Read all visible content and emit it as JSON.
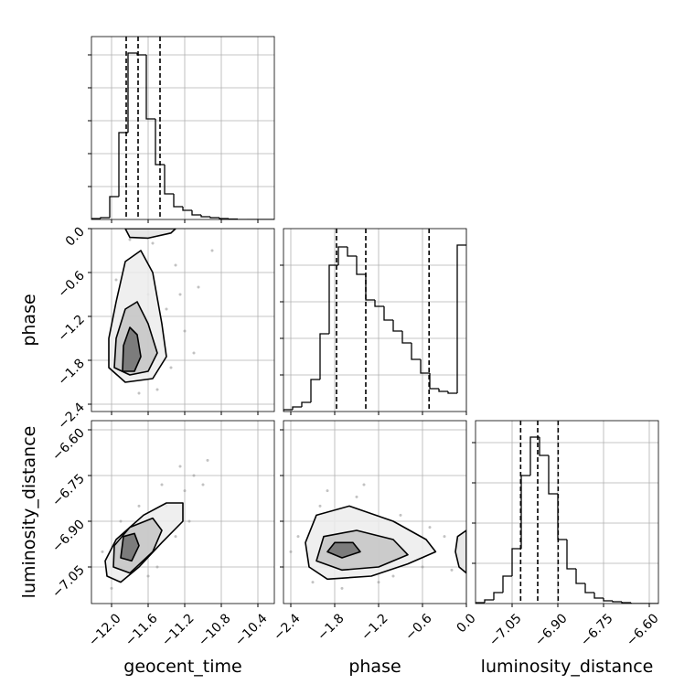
{
  "chart_data": {
    "type": "corner",
    "grid": true,
    "hist_color": "#000000",
    "scatter_color": "#9a9a9a",
    "contour_color": "#000000",
    "parameters": [
      {
        "name": "geocent_time",
        "lim": [
          -12.22,
          -10.22
        ],
        "ticks": [
          {
            "value": -12.0,
            "label": "−12.0"
          },
          {
            "value": -11.6,
            "label": "−11.6"
          },
          {
            "value": -11.2,
            "label": "−11.2"
          },
          {
            "value": -10.8,
            "label": "−10.8"
          },
          {
            "value": -10.4,
            "label": "−10.4"
          }
        ]
      },
      {
        "name": "phase",
        "lim": [
          -2.5,
          0.0
        ],
        "ticks": [
          {
            "value": -2.4,
            "label": "−2.4"
          },
          {
            "value": -1.8,
            "label": "−1.8"
          },
          {
            "value": -1.2,
            "label": "−1.2"
          },
          {
            "value": -0.6,
            "label": "−0.6"
          },
          {
            "value": 0,
            "label": "0.0"
          }
        ]
      },
      {
        "name": "luminosity_distance",
        "lim": [
          -7.17,
          -6.57
        ],
        "ticks": [
          {
            "value": -7.05,
            "label": "−7.05"
          },
          {
            "value": -6.9,
            "label": "−6.90"
          },
          {
            "value": -6.75,
            "label": "−6.75"
          },
          {
            "value": -6.6,
            "label": "−6.60"
          }
        ]
      }
    ],
    "histograms": [
      {
        "bins": [
          -12.22,
          -12.12,
          -12.02,
          -11.92,
          -11.82,
          -11.72,
          -11.62,
          -11.52,
          -11.42,
          -11.32,
          -11.22,
          -11.12,
          -11.02,
          -10.92,
          -10.82,
          -10.72,
          -10.62,
          -10.52,
          -10.42,
          -10.32,
          -10.22
        ],
        "values": [
          1,
          2,
          25,
          95,
          182,
          180,
          110,
          60,
          28,
          14,
          10,
          5,
          3,
          2,
          1,
          0.5,
          0,
          0,
          0,
          0
        ],
        "ylim": [
          0,
          200
        ],
        "yticks": [
          36,
          72,
          108,
          144,
          180
        ],
        "quantiles": [
          -11.84,
          -11.71,
          -11.47
        ]
      },
      {
        "bins": [
          -2.5,
          -2.375,
          -2.25,
          -2.125,
          -2.0,
          -1.875,
          -1.75,
          -1.625,
          -1.5,
          -1.375,
          -1.25,
          -1.125,
          -1.0,
          -0.875,
          -0.75,
          -0.625,
          -0.5,
          -0.375,
          -0.25,
          -0.125,
          0.0
        ],
        "values": [
          2,
          5,
          10,
          35,
          85,
          160,
          180,
          170,
          150,
          122,
          115,
          100,
          88,
          75,
          57,
          42,
          25,
          22,
          20,
          182
        ],
        "ylim": [
          0,
          200
        ],
        "yticks": [
          40,
          80,
          120,
          160
        ],
        "quantiles": [
          -1.775,
          -1.375,
          -0.51
        ]
      },
      {
        "bins": [
          -7.17,
          -7.14,
          -7.11,
          -7.08,
          -7.05,
          -7.02,
          -6.99,
          -6.96,
          -6.93,
          -6.9,
          -6.87,
          -6.84,
          -6.81,
          -6.78,
          -6.75,
          -6.72,
          -6.69,
          -6.66,
          -6.63,
          -6.6,
          -6.57
        ],
        "values": [
          1,
          4,
          12,
          30,
          60,
          140,
          182,
          162,
          120,
          70,
          38,
          22,
          12,
          6,
          3,
          2,
          1,
          0,
          0,
          0
        ],
        "ylim": [
          0,
          200
        ],
        "yticks": [
          44,
          88,
          132,
          176
        ],
        "quantiles": [
          -7.022,
          -6.966,
          -6.899
        ]
      }
    ],
    "pairs": [
      {
        "points": {
          "x": [
            -11.9,
            -11.6,
            -11.4,
            -11.3,
            -11.5,
            -11.2,
            -11.05,
            -11.7,
            -11.95,
            -11.35,
            -10.9,
            -11.1,
            -11.55,
            -11.8,
            -11.25
          ],
          "y": [
            -1.5,
            -0.9,
            -1.1,
            -0.5,
            -2.2,
            -1.4,
            -0.8,
            -2.25,
            -0.7,
            -1.9,
            -0.3,
            -1.7,
            -0.2,
            -0.15,
            -0.9
          ]
        },
        "contours": [
          {
            "x": [
              -12.03,
              -11.85,
              -11.55,
              -11.4,
              -11.45,
              -11.55,
              -11.68,
              -11.85,
              -11.95,
              -12.03
            ],
            "y": [
              -1.9,
              -2.1,
              -2.05,
              -1.75,
              -1.3,
              -0.6,
              -0.3,
              -0.45,
              -1.0,
              -1.5
            ]
          },
          {
            "x": [
              -11.97,
              -11.8,
              -11.6,
              -11.5,
              -11.6,
              -11.72,
              -11.85,
              -11.95
            ],
            "y": [
              -1.9,
              -2.0,
              -1.95,
              -1.7,
              -1.3,
              -1.0,
              -1.1,
              -1.5
            ]
          },
          {
            "x": [
              -11.88,
              -11.75,
              -11.68,
              -11.72,
              -11.8,
              -11.87
            ],
            "y": [
              -1.95,
              -1.95,
              -1.75,
              -1.45,
              -1.35,
              -1.6
            ]
          },
          {
            "x": [
              -11.85,
              -11.8,
              -11.6,
              -11.35,
              -11.3
            ],
            "y": [
              0,
              -0.12,
              -0.13,
              -0.06,
              0
            ]
          }
        ]
      },
      {
        "points": {
          "x": [
            -12.0,
            -11.9,
            -11.6,
            -11.4,
            -11.2,
            -11.1,
            -11.3,
            -11.5,
            -11.7,
            -11.0,
            -11.25,
            -12.1,
            -11.45,
            -11.15,
            -10.95
          ],
          "y": [
            -7.12,
            -6.9,
            -7.08,
            -6.85,
            -6.8,
            -6.75,
            -6.95,
            -7.05,
            -6.85,
            -6.78,
            -6.72,
            -7.0,
            -6.78,
            -6.9,
            -6.7
          ]
        },
        "contours": [
          {
            "x": [
              -12.05,
              -11.9,
              -11.7,
              -11.45,
              -11.22,
              -11.22,
              -11.4,
              -11.65,
              -11.95,
              -12.07
            ],
            "y": [
              -7.08,
              -7.1,
              -7.05,
              -6.97,
              -6.9,
              -6.84,
              -6.84,
              -6.88,
              -6.96,
              -7.03
            ]
          },
          {
            "x": [
              -11.98,
              -11.8,
              -11.55,
              -11.45,
              -11.55,
              -11.8,
              -11.97
            ],
            "y": [
              -7.05,
              -7.07,
              -7.0,
              -6.93,
              -6.89,
              -6.92,
              -6.98
            ]
          },
          {
            "x": [
              -11.9,
              -11.78,
              -11.7,
              -11.75,
              -11.87
            ],
            "y": [
              -7.02,
              -7.03,
              -6.98,
              -6.94,
              -6.95
            ]
          }
        ]
      },
      {
        "points": {
          "x": [
            -2.3,
            -2.1,
            -1.9,
            -1.5,
            -1.2,
            -0.9,
            -0.6,
            -0.3,
            -1.7,
            -2.0,
            -1.0,
            -0.5,
            -1.4,
            -2.4,
            -0.2
          ],
          "y": [
            -6.95,
            -7.1,
            -6.8,
            -6.82,
            -7.1,
            -6.88,
            -7.05,
            -6.95,
            -7.12,
            -6.85,
            -7.08,
            -6.92,
            -6.78,
            -7.0,
            -7.06
          ]
        },
        "contours": [
          {
            "x": [
              -2.15,
              -1.9,
              -1.3,
              -0.8,
              -0.42,
              -0.55,
              -1.0,
              -1.6,
              -2.05,
              -2.2
            ],
            "y": [
              -7.05,
              -7.09,
              -7.08,
              -7.04,
              -7.0,
              -6.96,
              -6.9,
              -6.85,
              -6.88,
              -6.97
            ]
          },
          {
            "x": [
              -2.05,
              -1.7,
              -1.2,
              -0.8,
              -1.0,
              -1.5,
              -1.95
            ],
            "y": [
              -7.03,
              -7.06,
              -7.05,
              -7.01,
              -6.96,
              -6.93,
              -6.95
            ]
          },
          {
            "x": [
              -1.9,
              -1.7,
              -1.45,
              -1.55,
              -1.8
            ],
            "y": [
              -7.0,
              -7.02,
              -7.0,
              -6.97,
              -6.97
            ]
          },
          {
            "x": [
              0,
              -0.12,
              -0.15,
              -0.1,
              0
            ],
            "y": [
              -6.93,
              -6.95,
              -7.0,
              -7.05,
              -7.07
            ]
          }
        ]
      }
    ]
  }
}
